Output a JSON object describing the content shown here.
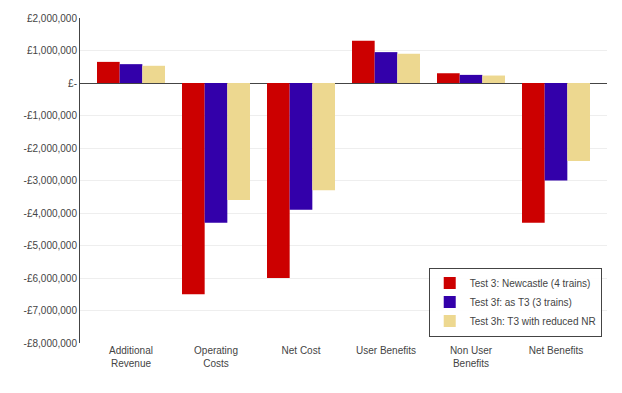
{
  "chart_data": {
    "type": "bar",
    "categories": [
      "Additional\nRevenue",
      "Operating\nCosts",
      "Net Cost",
      "User Benefits",
      "Non User\nBenefits",
      "Net Benefits"
    ],
    "series": [
      {
        "name": "Test 3: Newcastle (4 trains)",
        "color": "#CC0000",
        "values": [
          650000,
          -6500000,
          -6000000,
          1300000,
          300000,
          -4300000
        ]
      },
      {
        "name": "Test 3f: as T3 (3 trains)",
        "color": "#3300AA",
        "values": [
          580000,
          -4300000,
          -3900000,
          950000,
          250000,
          -3000000
        ]
      },
      {
        "name": "Test 3h: T3 with reduced NR",
        "color": "#EDD890",
        "values": [
          530000,
          -3600000,
          -3300000,
          900000,
          230000,
          -2400000
        ]
      }
    ],
    "ylim": [
      -8000000,
      2000000
    ],
    "yticks": [
      {
        "value": -8000000,
        "label": "-£8,000,000"
      },
      {
        "value": -7000000,
        "label": "-£7,000,000"
      },
      {
        "value": -6000000,
        "label": "-£6,000,000"
      },
      {
        "value": -5000000,
        "label": "-£5,000,000"
      },
      {
        "value": -4000000,
        "label": "-£4,000,000"
      },
      {
        "value": -3000000,
        "label": "-£3,000,000"
      },
      {
        "value": -2000000,
        "label": "-£2,000,000"
      },
      {
        "value": -1000000,
        "label": "-£1,000,000"
      },
      {
        "value": 0,
        "label": "£-"
      },
      {
        "value": 1000000,
        "label": "£1,000,000"
      },
      {
        "value": 2000000,
        "label": "£2,000,000"
      }
    ],
    "grid": true,
    "legend": "lower right"
  }
}
